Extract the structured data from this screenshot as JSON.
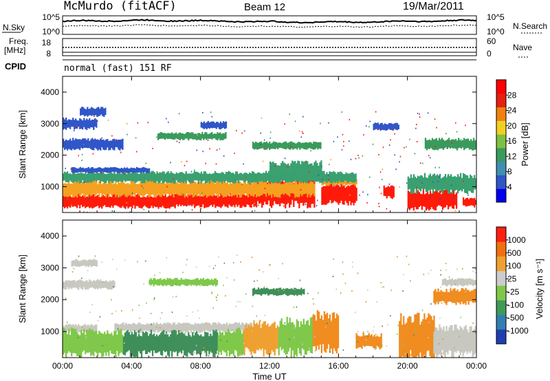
{
  "header": {
    "station": "McMurdo (fitACF)",
    "beam": "Beam 12",
    "date": "19/Mar/2011"
  },
  "status_panels": {
    "nsky_label": "N.Sky",
    "nsky_ticks": [
      "10^5",
      "10^0"
    ],
    "nsearch_label": "N.Search",
    "nsearch_ticks": [
      "10^5",
      "10^0"
    ],
    "freq_label_1": "Freq.",
    "freq_label_2": "[MHz]",
    "freq_ticks": [
      "18",
      "8"
    ],
    "nave_label": "Nave",
    "nave_ticks": [
      "60",
      "0"
    ],
    "cpid_label": "CPID",
    "cpid_text": "normal (fast) 151 RF"
  },
  "chart_data": [
    {
      "type": "heatmap",
      "quantity": "Power",
      "ylabel": "Slant Range [km]",
      "yticks": [
        1000,
        2000,
        3000,
        4000
      ],
      "ylim": [
        180,
        4500
      ],
      "xlim": [
        "00:00",
        "24:00"
      ],
      "colorbar_label": "Power [dB]",
      "colorbar_ticks": [
        "28",
        "24",
        "20",
        "16",
        "12",
        "8",
        "4"
      ],
      "colorbar_colors": [
        "#0000ee",
        "#2f55c8",
        "#3f8fb0",
        "#3a9a5c",
        "#7fc040",
        "#f0d020",
        "#f08010",
        "#e52010",
        "#ff0000"
      ],
      "bands": [
        {
          "level": "strong",
          "color": "#ff1a0a",
          "from": 0.0,
          "to": 6.5,
          "r0": 360,
          "r1": 720
        },
        {
          "level": "strong",
          "color": "#ff1a0a",
          "from": 6.5,
          "to": 11.2,
          "r0": 380,
          "r1": 760
        },
        {
          "level": "strong",
          "color": "#ff1a0a",
          "from": 11.2,
          "to": 14.6,
          "r0": 450,
          "r1": 1250
        },
        {
          "level": "strong",
          "color": "#ff1a0a",
          "from": 15.0,
          "to": 17.0,
          "r0": 500,
          "r1": 1050
        },
        {
          "level": "strong",
          "color": "#ff1a0a",
          "from": 18.6,
          "to": 19.2,
          "r0": 650,
          "r1": 1000
        },
        {
          "level": "strong",
          "color": "#ff1a0a",
          "from": 20.0,
          "to": 22.8,
          "r0": 330,
          "r1": 850
        },
        {
          "level": "strong",
          "color": "#ff1a0a",
          "from": 23.2,
          "to": 24.0,
          "r0": 380,
          "r1": 620
        },
        {
          "level": "medium",
          "color": "#f5a020",
          "from": 0.0,
          "to": 14.6,
          "r0": 720,
          "r1": 1150
        },
        {
          "level": "medium",
          "color": "#f5a020",
          "from": 15.0,
          "to": 17.0,
          "r0": 1050,
          "r1": 1250
        },
        {
          "level": "weak",
          "color": "#3aa070",
          "from": 0.0,
          "to": 17.0,
          "r0": 1150,
          "r1": 1450
        },
        {
          "level": "weak",
          "color": "#3aa070",
          "from": 20.0,
          "to": 24.0,
          "r0": 850,
          "r1": 1350
        },
        {
          "level": "weak",
          "color": "#3aa070",
          "from": 12.0,
          "to": 15.0,
          "r0": 1250,
          "r1": 1750
        },
        {
          "level": "weak",
          "color": "#2f55c8",
          "from": 0.5,
          "to": 5.0,
          "r0": 1450,
          "r1": 1600
        },
        {
          "level": "weak",
          "color": "#2f55c8",
          "from": 0.0,
          "to": 3.5,
          "r0": 2200,
          "r1": 2500
        },
        {
          "level": "weak",
          "color": "#2f55c8",
          "from": 0.0,
          "to": 2.0,
          "r0": 2850,
          "r1": 3150
        },
        {
          "level": "weak",
          "color": "#2f55c8",
          "from": 1.0,
          "to": 2.5,
          "r0": 3250,
          "r1": 3500
        },
        {
          "level": "weak",
          "color": "#3a9a5c",
          "from": 5.5,
          "to": 9.5,
          "r0": 2500,
          "r1": 2700
        },
        {
          "level": "weak",
          "color": "#2f55c8",
          "from": 8.0,
          "to": 9.5,
          "r0": 2850,
          "r1": 3050
        },
        {
          "level": "weak",
          "color": "#3a9a5c",
          "from": 11.0,
          "to": 15.0,
          "r0": 2200,
          "r1": 2400
        },
        {
          "level": "weak",
          "color": "#3a9a5c",
          "from": 21.0,
          "to": 24.0,
          "r0": 2200,
          "r1": 2500
        },
        {
          "level": "weak",
          "color": "#2f55c8",
          "from": 18.0,
          "to": 19.5,
          "r0": 2800,
          "r1": 3000
        }
      ]
    },
    {
      "type": "heatmap",
      "quantity": "Velocity",
      "ylabel": "Slant Range [km]",
      "yticks": [
        1000,
        2000,
        3000,
        4000
      ],
      "ylim": [
        180,
        4500
      ],
      "xlim": [
        "00:00",
        "24:00"
      ],
      "xticks": [
        "00:00",
        "04:00",
        "08:00",
        "12:00",
        "16:00",
        "20:00",
        "00:00"
      ],
      "xlabel": "Time UT",
      "colorbar_label": "Velocity [m s⁻¹]",
      "colorbar_ticks": [
        "1000",
        "500",
        "100",
        "25",
        "-25",
        "-100",
        "-500",
        "-1000"
      ],
      "colorbar_colors": [
        "#1f3fb0",
        "#2f7fb0",
        "#3f9a5a",
        "#7fc84a",
        "#cccccc",
        "#f0a030",
        "#f07010",
        "#ff2010"
      ],
      "bands": [
        {
          "level": "ground",
          "color": "#c8c8c0",
          "from": 3.0,
          "to": 11.0,
          "r0": 1000,
          "r1": 1250
        },
        {
          "level": "ground",
          "color": "#c8c8c0",
          "from": 0.0,
          "to": 2.0,
          "r0": 1000,
          "r1": 1200
        },
        {
          "level": "toward",
          "color": "#7fc84a",
          "from": 0.0,
          "to": 3.5,
          "r0": 300,
          "r1": 1000
        },
        {
          "level": "toward",
          "color": "#3f8f5a",
          "from": 3.5,
          "to": 9.0,
          "r0": 300,
          "r1": 950
        },
        {
          "level": "toward",
          "color": "#7fc84a",
          "from": 9.0,
          "to": 10.5,
          "r0": 300,
          "r1": 1000
        },
        {
          "level": "away",
          "color": "#f0a030",
          "from": 10.5,
          "to": 12.5,
          "r0": 350,
          "r1": 1200
        },
        {
          "level": "toward",
          "color": "#7fc84a",
          "from": 12.5,
          "to": 14.5,
          "r0": 350,
          "r1": 1300
        },
        {
          "level": "away",
          "color": "#f08c20",
          "from": 14.5,
          "to": 16.0,
          "r0": 450,
          "r1": 1500
        },
        {
          "level": "away",
          "color": "#f08c20",
          "from": 17.0,
          "to": 18.5,
          "r0": 500,
          "r1": 900
        },
        {
          "level": "away",
          "color": "#f08c20",
          "from": 19.5,
          "to": 21.5,
          "r0": 300,
          "r1": 1400
        },
        {
          "level": "ground",
          "color": "#c8c8c0",
          "from": 21.5,
          "to": 24.0,
          "r0": 300,
          "r1": 1100
        },
        {
          "level": "away",
          "color": "#f08c20",
          "from": 21.5,
          "to": 24.0,
          "r0": 1900,
          "r1": 2300
        },
        {
          "level": "ground",
          "color": "#c8c8c0",
          "from": 0.0,
          "to": 3.0,
          "r0": 2350,
          "r1": 2600
        },
        {
          "level": "ground",
          "color": "#c8c8c0",
          "from": 0.5,
          "to": 2.0,
          "r0": 3050,
          "r1": 3250
        },
        {
          "level": "toward",
          "color": "#7fc84a",
          "from": 5.0,
          "to": 9.0,
          "r0": 2450,
          "r1": 2650
        },
        {
          "level": "toward",
          "color": "#3f8f5a",
          "from": 11.0,
          "to": 14.0,
          "r0": 2150,
          "r1": 2350
        },
        {
          "level": "ground",
          "color": "#c8c8c0",
          "from": 22.0,
          "to": 24.0,
          "r0": 2450,
          "r1": 2650
        }
      ]
    }
  ]
}
